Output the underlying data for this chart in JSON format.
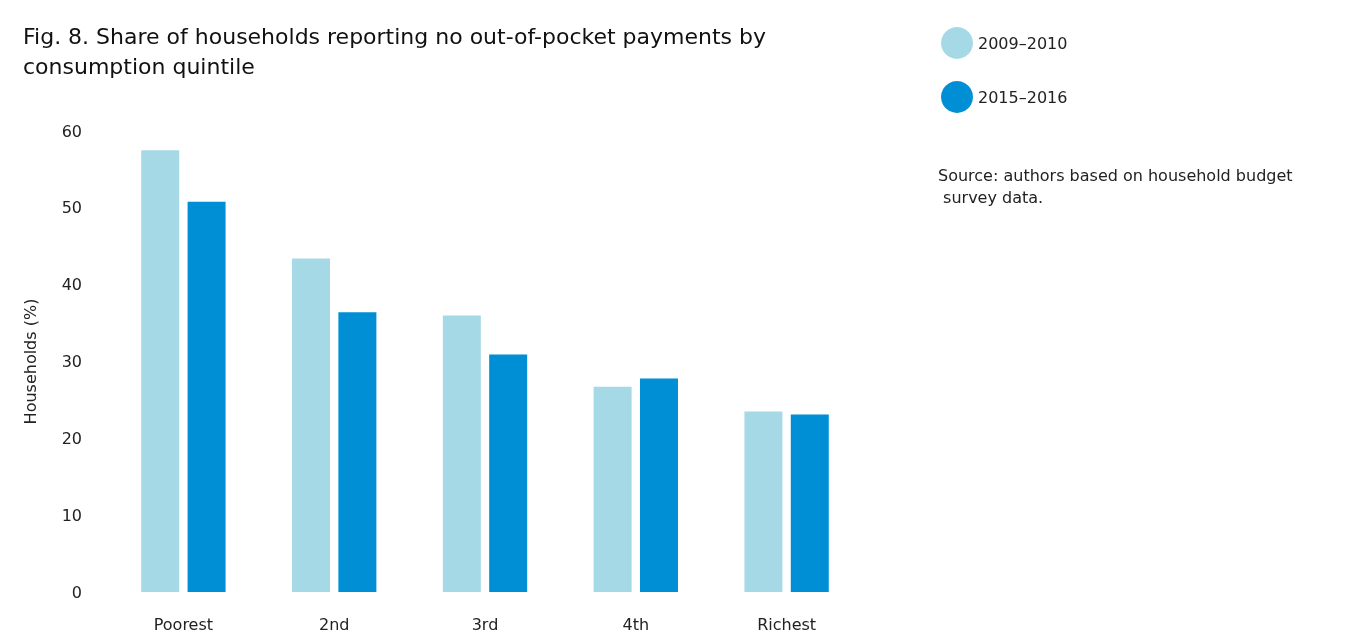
{
  "chart_data": {
    "type": "bar",
    "title": "Fig. 8. Share of households reporting no out-of-pocket payments by consumption quintile",
    "ylabel": "Households (%)",
    "categories": [
      "Poorest",
      "2nd",
      "3rd",
      "4th",
      "Richest"
    ],
    "series": [
      {
        "name": "2009–2010",
        "color": "#a6d9e6",
        "values": [
          57.5,
          43.4,
          36.0,
          26.7,
          23.5
        ]
      },
      {
        "name": "2015–2016",
        "color": "#008fd5",
        "values": [
          50.8,
          36.4,
          30.9,
          27.8,
          23.1
        ]
      }
    ],
    "ylim": [
      0,
      60
    ],
    "yticks": [
      0,
      10,
      20,
      30,
      40,
      50,
      60
    ],
    "grid": false,
    "legend": "top right",
    "annotations": [
      "Source: authors based on household budget survey data."
    ]
  }
}
